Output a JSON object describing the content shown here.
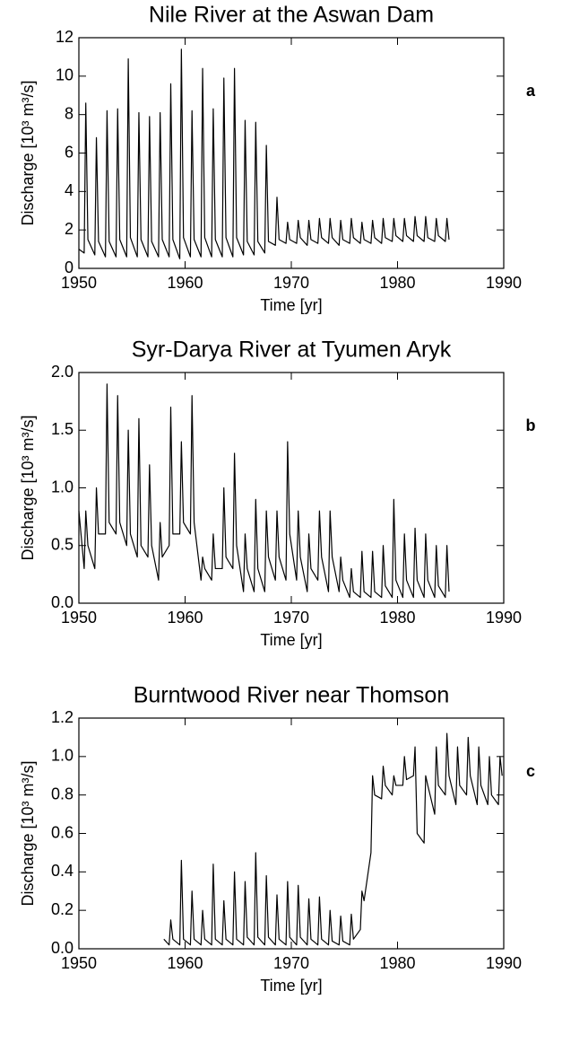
{
  "chart_data": [
    {
      "type": "line",
      "title": "Nile River at the Aswan Dam",
      "annotation": "a",
      "x_label": "Time [yr]",
      "y_label": "Discharge [10³ m³/s]",
      "color": "#000000",
      "xlim": [
        1950,
        1990
      ],
      "xticks": [
        1950,
        1960,
        1970,
        1980,
        1990
      ],
      "ylim": [
        0,
        12
      ],
      "yticks": [
        0,
        2,
        4,
        6,
        8,
        10,
        12
      ],
      "x": [
        1950,
        1950.5,
        1950.65,
        1950.85,
        1951.5,
        1951.65,
        1951.85,
        1952.5,
        1952.65,
        1952.85,
        1953.5,
        1953.65,
        1953.85,
        1954.5,
        1954.65,
        1954.85,
        1955.5,
        1955.65,
        1955.85,
        1956.5,
        1956.65,
        1956.85,
        1957.5,
        1957.65,
        1957.85,
        1958.5,
        1958.65,
        1958.85,
        1959.5,
        1959.65,
        1959.85,
        1960.5,
        1960.65,
        1960.85,
        1961.5,
        1961.65,
        1961.85,
        1962.5,
        1962.65,
        1962.85,
        1963.5,
        1963.65,
        1963.85,
        1964.5,
        1964.65,
        1964.85,
        1965.5,
        1965.65,
        1965.85,
        1966.5,
        1966.65,
        1966.85,
        1967.5,
        1967.65,
        1967.85,
        1968.5,
        1968.65,
        1968.85,
        1969.5,
        1969.65,
        1969.85,
        1970.5,
        1970.65,
        1970.85,
        1971.5,
        1971.65,
        1971.85,
        1972.5,
        1972.65,
        1972.85,
        1973.5,
        1973.65,
        1973.85,
        1974.5,
        1974.65,
        1974.85,
        1975.5,
        1975.65,
        1975.85,
        1976.5,
        1976.65,
        1976.85,
        1977.5,
        1977.65,
        1977.85,
        1978.5,
        1978.65,
        1978.85,
        1979.5,
        1979.65,
        1979.85,
        1980.5,
        1980.65,
        1980.85,
        1981.5,
        1981.65,
        1981.85,
        1982.5,
        1982.65,
        1982.85,
        1983.5,
        1983.65,
        1983.85,
        1984.5,
        1984.65,
        1984.85
      ],
      "values": [
        1.0,
        0.8,
        8.6,
        1.5,
        0.7,
        6.8,
        1.4,
        0.6,
        8.2,
        1.4,
        0.6,
        8.3,
        1.5,
        0.6,
        10.9,
        1.6,
        0.6,
        8.1,
        1.5,
        0.6,
        7.9,
        1.4,
        0.6,
        8.1,
        1.5,
        0.6,
        9.6,
        1.5,
        0.5,
        11.4,
        1.6,
        0.6,
        8.2,
        1.5,
        0.6,
        10.4,
        1.6,
        0.6,
        8.3,
        1.5,
        0.6,
        9.9,
        1.6,
        0.6,
        10.4,
        1.6,
        0.7,
        7.7,
        1.4,
        0.7,
        7.6,
        1.4,
        0.8,
        6.4,
        1.4,
        1.2,
        3.7,
        1.5,
        1.3,
        2.4,
        1.5,
        1.3,
        2.5,
        1.6,
        1.2,
        2.5,
        1.5,
        1.3,
        2.6,
        1.6,
        1.3,
        2.6,
        1.6,
        1.2,
        2.5,
        1.5,
        1.3,
        2.6,
        1.6,
        1.3,
        2.4,
        1.5,
        1.3,
        2.5,
        1.6,
        1.3,
        2.6,
        1.6,
        1.4,
        2.6,
        1.7,
        1.4,
        2.6,
        1.7,
        1.4,
        2.7,
        1.7,
        1.4,
        2.7,
        1.6,
        1.4,
        2.6,
        1.7,
        1.4,
        2.6,
        1.5
      ]
    },
    {
      "type": "line",
      "title": "Syr-Darya River at Tyumen Aryk",
      "annotation": "b",
      "x_label": "Time [yr]",
      "y_label": "Discharge [10³ m³/s]",
      "color": "#000000",
      "xlim": [
        1950,
        1990
      ],
      "xticks": [
        1950,
        1960,
        1970,
        1980,
        1990
      ],
      "ylim": [
        0,
        2
      ],
      "yticks": [
        {
          "value": 0,
          "label": "0.0"
        },
        0.5,
        {
          "value": 1,
          "label": "1.0"
        },
        1.5,
        {
          "value": 2,
          "label": "2.0"
        }
      ],
      "x": [
        1950,
        1950.5,
        1950.65,
        1950.85,
        1951.5,
        1951.65,
        1951.85,
        1952.5,
        1952.65,
        1952.85,
        1953.5,
        1953.65,
        1953.85,
        1954.5,
        1954.65,
        1954.85,
        1955.5,
        1955.65,
        1955.85,
        1956.5,
        1956.65,
        1956.85,
        1957.5,
        1957.65,
        1957.85,
        1958.5,
        1958.65,
        1958.85,
        1959.5,
        1959.65,
        1959.85,
        1960.5,
        1960.65,
        1960.85,
        1961.5,
        1961.65,
        1961.85,
        1962.5,
        1962.65,
        1962.85,
        1963.5,
        1963.65,
        1963.85,
        1964.5,
        1964.65,
        1964.85,
        1965.5,
        1965.65,
        1965.85,
        1966.5,
        1966.65,
        1966.85,
        1967.5,
        1967.65,
        1967.85,
        1968.5,
        1968.65,
        1968.85,
        1969.5,
        1969.65,
        1969.85,
        1970.5,
        1970.65,
        1970.85,
        1971.5,
        1971.65,
        1971.85,
        1972.5,
        1972.65,
        1972.85,
        1973.5,
        1973.65,
        1973.85,
        1974.5,
        1974.65,
        1974.85,
        1975.5,
        1975.65,
        1975.85,
        1976.5,
        1976.65,
        1976.85,
        1977.5,
        1977.65,
        1977.85,
        1978.5,
        1978.65,
        1978.85,
        1979.5,
        1979.65,
        1979.85,
        1980.5,
        1980.65,
        1980.85,
        1981.5,
        1981.65,
        1981.85,
        1982.5,
        1982.65,
        1982.85,
        1983.5,
        1983.65,
        1983.85,
        1984.5,
        1984.65,
        1984.85
      ],
      "values": [
        0.8,
        0.3,
        0.8,
        0.5,
        0.3,
        1.0,
        0.6,
        0.6,
        1.9,
        0.7,
        0.6,
        1.8,
        0.7,
        0.5,
        1.5,
        0.6,
        0.4,
        1.6,
        0.5,
        0.4,
        1.2,
        0.5,
        0.2,
        0.7,
        0.4,
        0.5,
        1.7,
        0.6,
        0.6,
        1.4,
        0.7,
        0.6,
        1.8,
        0.7,
        0.2,
        0.4,
        0.3,
        0.2,
        0.6,
        0.3,
        0.3,
        1.0,
        0.4,
        0.3,
        1.3,
        0.5,
        0.1,
        0.6,
        0.3,
        0.1,
        0.9,
        0.3,
        0.1,
        0.8,
        0.4,
        0.2,
        0.8,
        0.4,
        0.2,
        1.4,
        0.6,
        0.2,
        0.8,
        0.4,
        0.1,
        0.6,
        0.3,
        0.2,
        0.8,
        0.4,
        0.1,
        0.8,
        0.4,
        0.1,
        0.4,
        0.2,
        0.05,
        0.3,
        0.1,
        0.05,
        0.45,
        0.1,
        0.05,
        0.45,
        0.1,
        0.05,
        0.5,
        0.15,
        0.05,
        0.9,
        0.2,
        0.05,
        0.6,
        0.2,
        0.05,
        0.65,
        0.2,
        0.05,
        0.6,
        0.2,
        0.05,
        0.5,
        0.15,
        0.05,
        0.5,
        0.1
      ]
    },
    {
      "type": "line",
      "title": "Burntwood River near Thomson",
      "annotation": "c",
      "x_label": "Time [yr]",
      "y_label": "Discharge [10³ m³/s]",
      "color": "#000000",
      "xlim": [
        1950,
        1990
      ],
      "xticks": [
        1950,
        1960,
        1970,
        1980,
        1990
      ],
      "ylim": [
        0,
        1.2
      ],
      "yticks": [
        {
          "value": 0,
          "label": "0.0"
        },
        0.2,
        0.4,
        0.6,
        0.8,
        {
          "value": 1,
          "label": "1.0"
        },
        1.2
      ],
      "x": [
        1958,
        1958.5,
        1958.65,
        1958.85,
        1959.5,
        1959.65,
        1959.85,
        1960.5,
        1960.65,
        1960.85,
        1961.5,
        1961.65,
        1961.85,
        1962.5,
        1962.65,
        1962.85,
        1963.5,
        1963.65,
        1963.85,
        1964.5,
        1964.65,
        1964.85,
        1965.5,
        1965.65,
        1965.85,
        1966.5,
        1966.65,
        1966.85,
        1967.5,
        1967.65,
        1967.85,
        1968.5,
        1968.65,
        1968.85,
        1969.5,
        1969.65,
        1969.85,
        1970.5,
        1970.65,
        1970.85,
        1971.5,
        1971.65,
        1971.85,
        1972.5,
        1972.65,
        1972.85,
        1973.5,
        1973.65,
        1973.85,
        1974.5,
        1974.65,
        1974.85,
        1975.5,
        1975.65,
        1975.85,
        1976.5,
        1976.65,
        1976.85,
        1977.5,
        1977.65,
        1977.85,
        1978.5,
        1978.65,
        1978.85,
        1979.5,
        1979.65,
        1979.85,
        1980.5,
        1980.65,
        1980.85,
        1981.5,
        1981.65,
        1981.85,
        1982.5,
        1982.65,
        1982.85,
        1983.5,
        1983.65,
        1983.85,
        1984.5,
        1984.65,
        1984.85,
        1985.5,
        1985.65,
        1985.85,
        1986.5,
        1986.65,
        1986.85,
        1987.5,
        1987.65,
        1987.85,
        1988.5,
        1988.65,
        1988.85,
        1989.5,
        1989.65,
        1989.85
      ],
      "values": [
        0.05,
        0.02,
        0.15,
        0.05,
        0.02,
        0.46,
        0.05,
        0.02,
        0.3,
        0.05,
        0.02,
        0.2,
        0.05,
        0.02,
        0.44,
        0.05,
        0.02,
        0.25,
        0.05,
        0.02,
        0.4,
        0.05,
        0.02,
        0.35,
        0.06,
        0.02,
        0.5,
        0.06,
        0.02,
        0.38,
        0.06,
        0.02,
        0.28,
        0.05,
        0.02,
        0.35,
        0.06,
        0.02,
        0.33,
        0.06,
        0.02,
        0.26,
        0.05,
        0.02,
        0.27,
        0.05,
        0.02,
        0.2,
        0.04,
        0.02,
        0.17,
        0.04,
        0.02,
        0.18,
        0.05,
        0.1,
        0.3,
        0.25,
        0.5,
        0.9,
        0.8,
        0.78,
        0.95,
        0.85,
        0.8,
        0.9,
        0.85,
        0.85,
        1.0,
        0.88,
        0.9,
        1.05,
        0.6,
        0.55,
        0.9,
        0.85,
        0.7,
        1.05,
        0.85,
        0.8,
        1.12,
        0.9,
        0.75,
        1.05,
        0.85,
        0.8,
        1.1,
        0.9,
        0.75,
        1.05,
        0.85,
        0.75,
        1.0,
        0.8,
        0.75,
        1.0,
        0.9
      ]
    }
  ]
}
